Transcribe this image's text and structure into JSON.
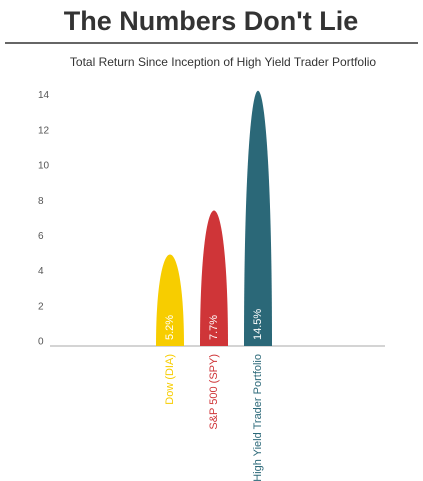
{
  "chart_data": {
    "type": "bar",
    "title": "The Numbers Don't Lie",
    "subtitle": "Total Return Since Inception of High Yield Trader Portfolio",
    "categories": [
      "Dow (DIA)",
      "S&P 500 (SPY)",
      "High Yield Trader Portfolio"
    ],
    "values": [
      5.2,
      7.7,
      14.5
    ],
    "value_labels": [
      "5.2%",
      "7.7%",
      "14.5%"
    ],
    "colors": [
      "#f7cd00",
      "#cf3538",
      "#2b6878"
    ],
    "ylim": [
      0,
      15
    ],
    "yticks": [
      0,
      2,
      4,
      6,
      8,
      10,
      12,
      14
    ],
    "grid": false
  }
}
